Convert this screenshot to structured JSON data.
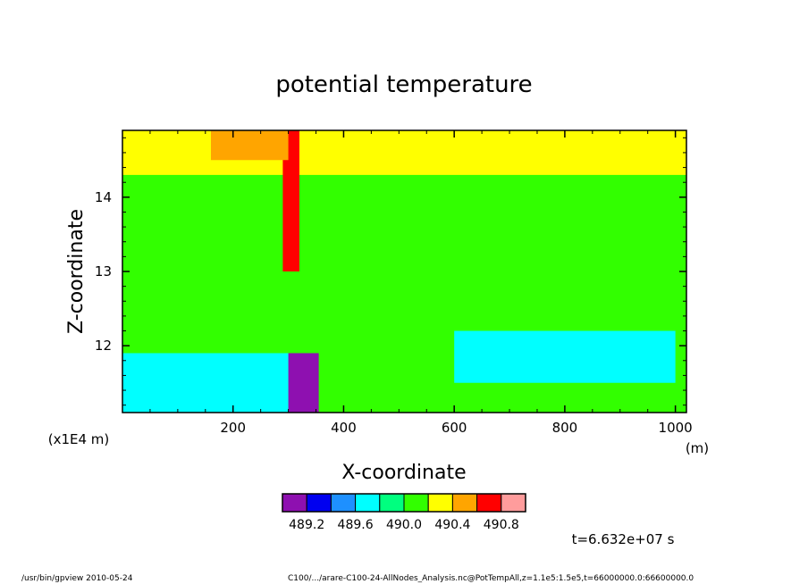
{
  "chart_data": {
    "type": "heatmap",
    "title": "potential temperature",
    "xlabel": "X-coordinate",
    "ylabel": "Z-coordinate",
    "x_unit": "(m)",
    "y_unit": "(x1E4 m)",
    "xlim": [
      0,
      1020
    ],
    "ylim": [
      11.1,
      14.9
    ],
    "x_ticks": [
      "200",
      "400",
      "600",
      "800",
      "1000"
    ],
    "y_ticks": [
      "12",
      "13",
      "14"
    ],
    "x_tick_values": [
      200,
      400,
      600,
      800,
      1000
    ],
    "y_tick_values": [
      12,
      13,
      14
    ],
    "colorbar": {
      "levels": [
        489.0,
        489.2,
        489.4,
        489.6,
        489.8,
        490.0,
        490.2,
        490.4,
        490.6,
        490.8,
        491.0
      ],
      "labels": [
        "489.2",
        "489.6",
        "490.0",
        "490.4",
        "490.8"
      ],
      "colors": [
        "#8e10b0",
        "#0000f0",
        "#1e90ff",
        "#00ffff",
        "#00ff7f",
        "#32ff00",
        "#ffff00",
        "#ffa500",
        "#ff0000",
        "#ff9c9c"
      ]
    },
    "background_value": 490.1,
    "regions": [
      {
        "name": "upper-layer",
        "value": 490.2,
        "x": [
          0,
          1020
        ],
        "y": [
          14.3,
          14.9
        ]
      },
      {
        "name": "mid-layer",
        "value": 490.0,
        "x": [
          0,
          1020
        ],
        "y": [
          12.5,
          13.3
        ]
      },
      {
        "name": "lower-left-cyan",
        "value": 489.7,
        "x": [
          0,
          350
        ],
        "y": [
          11.1,
          11.9
        ]
      },
      {
        "name": "plume-dark",
        "value": 489.1,
        "x": [
          300,
          355
        ],
        "y": [
          11.1,
          11.9
        ]
      },
      {
        "name": "plume-red",
        "value": 490.7,
        "x": [
          290,
          320
        ],
        "y": [
          13.0,
          14.9
        ]
      },
      {
        "name": "top-orange",
        "value": 490.5,
        "x": [
          160,
          300
        ],
        "y": [
          14.5,
          14.9
        ]
      },
      {
        "name": "right-cyan-patches",
        "value": 489.7,
        "x": [
          600,
          1000
        ],
        "y": [
          11.5,
          12.2
        ]
      }
    ]
  },
  "annotations": {
    "time": "t=6.632e+07 s",
    "footer_left": "/usr/bin/gpview   2010-05-24",
    "footer_right": "C100/.../arare-C100-24-AllNodes_Analysis.nc@PotTempAll,z=1.1e5:1.5e5,t=66000000.0:66600000.0"
  }
}
